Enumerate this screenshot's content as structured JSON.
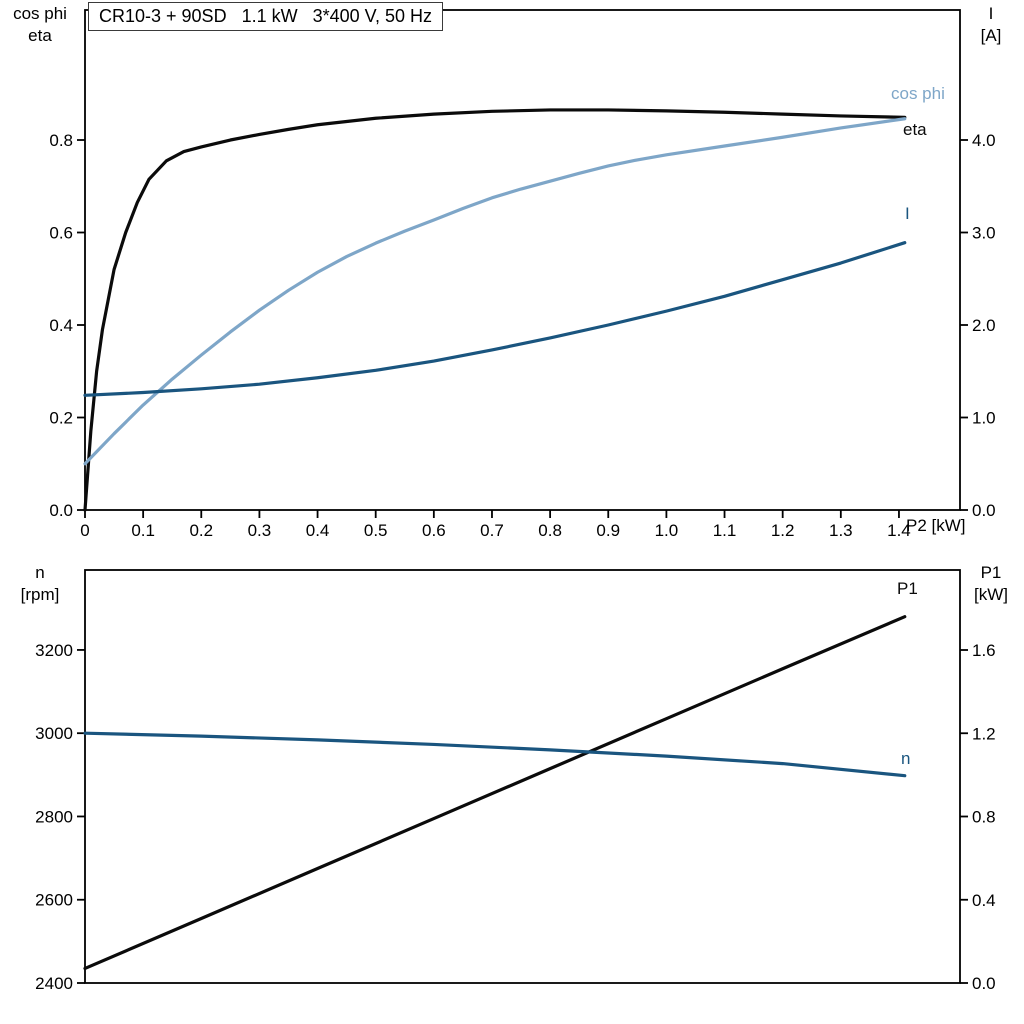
{
  "colors": {
    "axis": "#000000",
    "black": "#0b0b0b",
    "dark_blue": "#1a557f",
    "light_blue": "#7ea6c8"
  },
  "chart_data": [
    {
      "type": "line",
      "title": "CR10-3 + 90SD   1.1 kW   3*400 V, 50 Hz",
      "xlabel": "P2 [kW]",
      "xlim": [
        0,
        1.505
      ],
      "grid": false,
      "x_ticks": [
        {
          "v": 0.0,
          "label": "0"
        },
        {
          "v": 0.1,
          "label": "0.1"
        },
        {
          "v": 0.2,
          "label": "0.2"
        },
        {
          "v": 0.3,
          "label": "0.3"
        },
        {
          "v": 0.4,
          "label": "0.4"
        },
        {
          "v": 0.5,
          "label": "0.5"
        },
        {
          "v": 0.6,
          "label": "0.6"
        },
        {
          "v": 0.7,
          "label": "0.7"
        },
        {
          "v": 0.8,
          "label": "0.8"
        },
        {
          "v": 0.9,
          "label": "0.9"
        },
        {
          "v": 1.0,
          "label": "1.0"
        },
        {
          "v": 1.1,
          "label": "1.1"
        },
        {
          "v": 1.2,
          "label": "1.2"
        },
        {
          "v": 1.3,
          "label": "1.3"
        },
        {
          "v": 1.4,
          "label": "1.4"
        }
      ],
      "left_axis": {
        "label_lines": [
          "cos phi",
          "eta"
        ],
        "lim": [
          0,
          1.0811
        ],
        "ticks": [
          {
            "v": 0.0,
            "label": "0.0"
          },
          {
            "v": 0.2,
            "label": "0.2"
          },
          {
            "v": 0.4,
            "label": "0.4"
          },
          {
            "v": 0.6,
            "label": "0.6"
          },
          {
            "v": 0.8,
            "label": "0.8"
          }
        ]
      },
      "right_axis": {
        "label_lines": [
          "I",
          "[A]"
        ],
        "lim": [
          0,
          5.4054
        ],
        "ticks": [
          {
            "v": 0.0,
            "label": "0.0"
          },
          {
            "v": 1.0,
            "label": "1.0"
          },
          {
            "v": 2.0,
            "label": "2.0"
          },
          {
            "v": 3.0,
            "label": "3.0"
          },
          {
            "v": 4.0,
            "label": "4.0"
          }
        ]
      },
      "series": [
        {
          "name": "eta",
          "label": "eta",
          "axis": "left",
          "color_key": "black",
          "points": [
            [
              0,
              0
            ],
            [
              0.01,
              0.17
            ],
            [
              0.02,
              0.3
            ],
            [
              0.03,
              0.39
            ],
            [
              0.04,
              0.455
            ],
            [
              0.05,
              0.52
            ],
            [
              0.07,
              0.6
            ],
            [
              0.09,
              0.665
            ],
            [
              0.11,
              0.715
            ],
            [
              0.14,
              0.755
            ],
            [
              0.17,
              0.775
            ],
            [
              0.2,
              0.785
            ],
            [
              0.25,
              0.8
            ],
            [
              0.3,
              0.812
            ],
            [
              0.35,
              0.823
            ],
            [
              0.4,
              0.833
            ],
            [
              0.5,
              0.847
            ],
            [
              0.6,
              0.856
            ],
            [
              0.7,
              0.862
            ],
            [
              0.8,
              0.865
            ],
            [
              0.9,
              0.865
            ],
            [
              1.0,
              0.863
            ],
            [
              1.1,
              0.86
            ],
            [
              1.2,
              0.856
            ],
            [
              1.3,
              0.852
            ],
            [
              1.41,
              0.849
            ]
          ]
        },
        {
          "name": "cos_phi",
          "label": "cos phi",
          "axis": "left",
          "color_key": "light_blue",
          "points": [
            [
              0,
              0.1
            ],
            [
              0.05,
              0.165
            ],
            [
              0.1,
              0.227
            ],
            [
              0.15,
              0.283
            ],
            [
              0.2,
              0.335
            ],
            [
              0.25,
              0.385
            ],
            [
              0.3,
              0.432
            ],
            [
              0.35,
              0.475
            ],
            [
              0.4,
              0.514
            ],
            [
              0.45,
              0.548
            ],
            [
              0.5,
              0.577
            ],
            [
              0.55,
              0.603
            ],
            [
              0.6,
              0.627
            ],
            [
              0.65,
              0.652
            ],
            [
              0.7,
              0.675
            ],
            [
              0.75,
              0.694
            ],
            [
              0.8,
              0.711
            ],
            [
              0.85,
              0.728
            ],
            [
              0.9,
              0.744
            ],
            [
              0.95,
              0.757
            ],
            [
              1.0,
              0.768
            ],
            [
              1.1,
              0.787
            ],
            [
              1.2,
              0.806
            ],
            [
              1.3,
              0.826
            ],
            [
              1.41,
              0.846
            ]
          ]
        },
        {
          "name": "current",
          "label": "I",
          "axis": "right",
          "color_key": "dark_blue",
          "points": [
            [
              0,
              1.24
            ],
            [
              0.1,
              1.27
            ],
            [
              0.2,
              1.31
            ],
            [
              0.3,
              1.36
            ],
            [
              0.4,
              1.43
            ],
            [
              0.5,
              1.51
            ],
            [
              0.6,
              1.61
            ],
            [
              0.7,
              1.73
            ],
            [
              0.8,
              1.86
            ],
            [
              0.9,
              2.0
            ],
            [
              1.0,
              2.15
            ],
            [
              1.1,
              2.31
            ],
            [
              1.2,
              2.49
            ],
            [
              1.3,
              2.67
            ],
            [
              1.41,
              2.89
            ]
          ]
        }
      ]
    },
    {
      "type": "line",
      "title": "",
      "xlabel": "",
      "xlim": [
        0,
        1.505
      ],
      "grid": false,
      "x_ticks": [],
      "left_axis": {
        "label_lines": [
          "n",
          "[rpm]"
        ],
        "lim": [
          2400,
          3392
        ],
        "ticks": [
          {
            "v": 2400,
            "label": "2400"
          },
          {
            "v": 2600,
            "label": "2600"
          },
          {
            "v": 2800,
            "label": "2800"
          },
          {
            "v": 3000,
            "label": "3000"
          },
          {
            "v": 3200,
            "label": "3200"
          }
        ]
      },
      "right_axis": {
        "label_lines": [
          "P1",
          "[kW]"
        ],
        "lim": [
          0,
          1.9844
        ],
        "ticks": [
          {
            "v": 0.0,
            "label": "0.0"
          },
          {
            "v": 0.4,
            "label": "0.4"
          },
          {
            "v": 0.8,
            "label": "0.8"
          },
          {
            "v": 1.2,
            "label": "1.2"
          },
          {
            "v": 1.6,
            "label": "1.6"
          }
        ]
      },
      "series": [
        {
          "name": "p1",
          "label": "P1",
          "axis": "right",
          "color_key": "black",
          "points": [
            [
              0,
              0.07
            ],
            [
              0.2,
              0.31
            ],
            [
              0.4,
              0.55
            ],
            [
              0.6,
              0.79
            ],
            [
              0.8,
              1.03
            ],
            [
              1.0,
              1.27
            ],
            [
              1.2,
              1.51
            ],
            [
              1.41,
              1.76
            ]
          ]
        },
        {
          "name": "n",
          "label": "n",
          "axis": "left",
          "color_key": "dark_blue",
          "points": [
            [
              0,
              3000
            ],
            [
              0.2,
              2993
            ],
            [
              0.4,
              2984
            ],
            [
              0.6,
              2973
            ],
            [
              0.8,
              2960
            ],
            [
              1.0,
              2945
            ],
            [
              1.2,
              2927
            ],
            [
              1.41,
              2898
            ]
          ]
        }
      ]
    }
  ]
}
